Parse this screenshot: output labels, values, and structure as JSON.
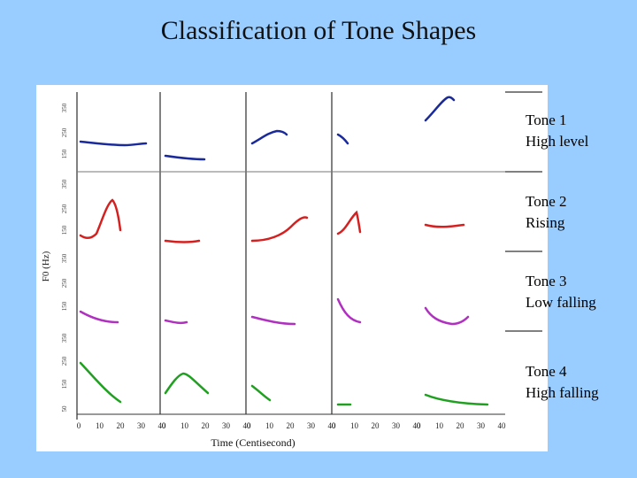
{
  "slide": {
    "title": "Classification of Tone Shapes"
  },
  "figure": {
    "ylabel": "F0 (Hz)",
    "xlabel": "Time (Centisecond)",
    "y_tick_labels": [
      "350",
      "250",
      "150",
      "50"
    ],
    "x_tick_labels": [
      "0",
      "10",
      "20",
      "30",
      "40"
    ]
  },
  "tones": [
    {
      "name": "Tone 1",
      "desc": "High level",
      "color": "#1a2a9a"
    },
    {
      "name": "Tone 2",
      "desc": "Rising",
      "color": "#d62020"
    },
    {
      "name": "Tone 3",
      "desc": "Low falling",
      "color": "#b030c0"
    },
    {
      "name": "Tone 4",
      "desc": "High falling",
      "color": "#20a020"
    }
  ]
}
